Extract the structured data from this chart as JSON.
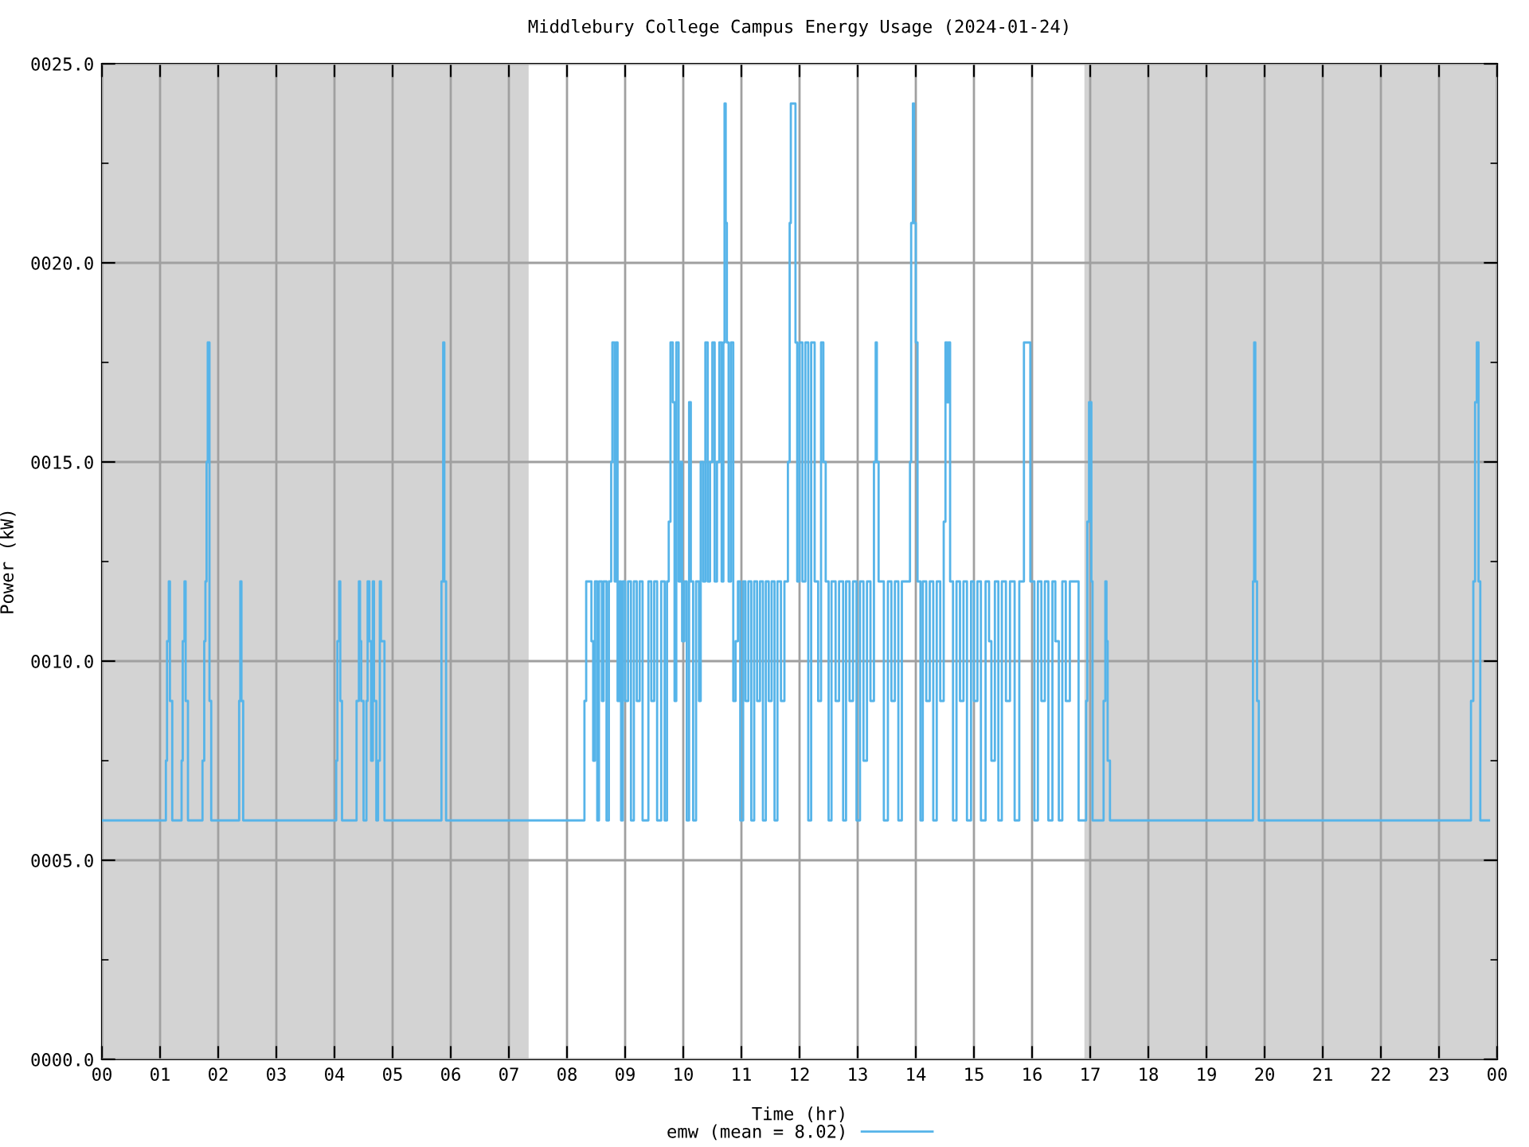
{
  "chart_data": {
    "type": "step",
    "title": "Middlebury College Campus Energy Usage (2024-01-24)",
    "xlabel": "Time (hr)",
    "ylabel": "Power (kW)",
    "xlim": [
      0,
      24
    ],
    "ylim": [
      0,
      25
    ],
    "xticks": [
      {
        "value": 0,
        "label": "00"
      },
      {
        "value": 1,
        "label": "01"
      },
      {
        "value": 2,
        "label": "02"
      },
      {
        "value": 3,
        "label": "03"
      },
      {
        "value": 4,
        "label": "04"
      },
      {
        "value": 5,
        "label": "05"
      },
      {
        "value": 6,
        "label": "06"
      },
      {
        "value": 7,
        "label": "07"
      },
      {
        "value": 8,
        "label": "08"
      },
      {
        "value": 9,
        "label": "09"
      },
      {
        "value": 10,
        "label": "10"
      },
      {
        "value": 11,
        "label": "11"
      },
      {
        "value": 12,
        "label": "12"
      },
      {
        "value": 13,
        "label": "13"
      },
      {
        "value": 14,
        "label": "14"
      },
      {
        "value": 15,
        "label": "15"
      },
      {
        "value": 16,
        "label": "16"
      },
      {
        "value": 17,
        "label": "17"
      },
      {
        "value": 18,
        "label": "18"
      },
      {
        "value": 19,
        "label": "19"
      },
      {
        "value": 20,
        "label": "20"
      },
      {
        "value": 21,
        "label": "21"
      },
      {
        "value": 22,
        "label": "22"
      },
      {
        "value": 23,
        "label": "23"
      },
      {
        "value": 24,
        "label": "00"
      }
    ],
    "yticks": [
      {
        "value": 0,
        "label": "0000.0"
      },
      {
        "value": 2.5,
        "label": null
      },
      {
        "value": 5,
        "label": "0005.0"
      },
      {
        "value": 7.5,
        "label": null
      },
      {
        "value": 10,
        "label": "0010.0"
      },
      {
        "value": 12.5,
        "label": null
      },
      {
        "value": 15,
        "label": "0015.0"
      },
      {
        "value": 17.5,
        "label": null
      },
      {
        "value": 20,
        "label": "0020.0"
      },
      {
        "value": 22.5,
        "label": null
      },
      {
        "value": 25,
        "label": "0025.0"
      }
    ],
    "grid": true,
    "legend": "bottom",
    "bands": [
      {
        "axis": "x",
        "from": 0,
        "to": 7.34,
        "color": "#d3d3d3"
      },
      {
        "axis": "x",
        "from": 16.9,
        "to": 24,
        "color": "#d3d3d3"
      }
    ],
    "series": [
      {
        "name": "emw (mean = 8.02)",
        "color": "#56b4e9",
        "x": [
          0,
          1.1,
          1.12,
          1.15,
          1.17,
          1.21,
          1.37,
          1.39,
          1.42,
          1.44,
          1.48,
          1.73,
          1.76,
          1.78,
          1.8,
          1.82,
          1.85,
          1.88,
          2.36,
          2.38,
          2.4,
          2.43,
          4.03,
          4.05,
          4.08,
          4.1,
          4.13,
          4.38,
          4.42,
          4.44,
          4.46,
          4.5,
          4.55,
          4.57,
          4.6,
          4.63,
          4.66,
          4.68,
          4.72,
          4.75,
          4.78,
          4.8,
          4.86,
          5.84,
          5.87,
          5.89,
          5.92,
          8.3,
          8.33,
          8.42,
          8.45,
          8.48,
          8.52,
          8.55,
          8.6,
          8.63,
          8.68,
          8.72,
          8.76,
          8.78,
          8.82,
          8.84,
          8.87,
          8.9,
          8.93,
          8.96,
          9.0,
          9.05,
          9.1,
          9.15,
          9.2,
          9.25,
          9.3,
          9.4,
          9.45,
          9.5,
          9.55,
          9.62,
          9.68,
          9.72,
          9.75,
          9.78,
          9.82,
          9.85,
          9.88,
          9.92,
          9.95,
          9.98,
          10.02,
          10.06,
          10.1,
          10.13,
          10.17,
          10.22,
          10.27,
          10.3,
          10.34,
          10.38,
          10.42,
          10.46,
          10.5,
          10.54,
          10.58,
          10.62,
          10.66,
          10.69,
          10.71,
          10.73,
          10.75,
          10.78,
          10.82,
          10.86,
          10.9,
          10.94,
          10.98,
          11.03,
          11.07,
          11.12,
          11.17,
          11.22,
          11.27,
          11.32,
          11.37,
          11.42,
          11.47,
          11.52,
          11.57,
          11.62,
          11.68,
          11.74,
          11.8,
          11.83,
          11.85,
          11.93,
          11.96,
          12.0,
          12.05,
          12.1,
          12.15,
          12.2,
          12.26,
          12.32,
          12.37,
          12.41,
          12.45,
          12.5,
          12.55,
          12.62,
          12.68,
          12.75,
          12.8,
          12.86,
          12.92,
          12.98,
          13.04,
          13.1,
          13.16,
          13.22,
          13.28,
          13.31,
          13.33,
          13.36,
          13.45,
          13.52,
          13.58,
          13.64,
          13.7,
          13.76,
          13.84,
          13.9,
          13.92,
          13.95,
          13.97,
          14.0,
          14.03,
          14.08,
          14.12,
          14.18,
          14.24,
          14.3,
          14.36,
          14.42,
          14.48,
          14.51,
          14.54,
          14.56,
          14.59,
          14.64,
          14.7,
          14.76,
          14.82,
          14.88,
          14.95,
          15.0,
          15.06,
          15.12,
          15.2,
          15.26,
          15.3,
          15.36,
          15.42,
          15.48,
          15.55,
          15.62,
          15.7,
          15.78,
          15.86,
          15.97,
          16.04,
          16.1,
          16.16,
          16.22,
          16.28,
          16.35,
          16.4,
          16.46,
          16.52,
          16.58,
          16.65,
          16.8,
          16.93,
          16.95,
          16.98,
          17.02,
          17.04,
          17.23,
          17.26,
          17.28,
          17.3,
          17.34,
          19.8,
          19.82,
          19.84,
          19.87,
          19.9,
          23.55,
          23.59,
          23.62,
          23.65,
          23.68,
          23.71,
          23.86
        ],
        "values": [
          6,
          7.5,
          10.5,
          12,
          9,
          6,
          7.5,
          10.5,
          12,
          9,
          6,
          7.5,
          10.5,
          12,
          15,
          18,
          9,
          6,
          9,
          12,
          9,
          6,
          7.5,
          10.5,
          12,
          9,
          6,
          9,
          12,
          10.5,
          9,
          6,
          9,
          12,
          10.5,
          7.5,
          12,
          9,
          6,
          7.5,
          12,
          10.5,
          6,
          12,
          18,
          12,
          6,
          9,
          12,
          10.5,
          7.5,
          12,
          6,
          12,
          9,
          12,
          6,
          12,
          15,
          18,
          12,
          18,
          9,
          12,
          6,
          12,
          9,
          12,
          6,
          12,
          9,
          12,
          6,
          12,
          9,
          12,
          6,
          12,
          6,
          12,
          13.5,
          18,
          16.5,
          9,
          18,
          12,
          15,
          10.5,
          12,
          6,
          16.5,
          12,
          6,
          12,
          9,
          15,
          12,
          18,
          12,
          15,
          18,
          12,
          15,
          18,
          12,
          18,
          24,
          21,
          18,
          12,
          18,
          9,
          10.5,
          12,
          6,
          12,
          9,
          12,
          6,
          12,
          9,
          12,
          6,
          12,
          9,
          12,
          6,
          12,
          9,
          12,
          15,
          21,
          24,
          18,
          12,
          18,
          12,
          18,
          6,
          18,
          12,
          9,
          18,
          15,
          12,
          6,
          12,
          9,
          12,
          6,
          12,
          9,
          12,
          6,
          12,
          7.5,
          12,
          9,
          15,
          18,
          15,
          12,
          6,
          12,
          9,
          12,
          6,
          12,
          12,
          15,
          21,
          24,
          21,
          18,
          12,
          6,
          12,
          9,
          12,
          6,
          12,
          9,
          13.5,
          18,
          16.5,
          18,
          12,
          6,
          12,
          9,
          12,
          6,
          12,
          9,
          12,
          6,
          12,
          10.5,
          7.5,
          12,
          6,
          12,
          9,
          12,
          6,
          12,
          18,
          12,
          6,
          12,
          9,
          12,
          6,
          12,
          10.5,
          6,
          12,
          9,
          12,
          6,
          9,
          13.5,
          16.5,
          12,
          6,
          9,
          12,
          10.5,
          7.5,
          6,
          12,
          18,
          12,
          9,
          6,
          9,
          12,
          16.5,
          18,
          12,
          6,
          6
        ]
      }
    ]
  }
}
